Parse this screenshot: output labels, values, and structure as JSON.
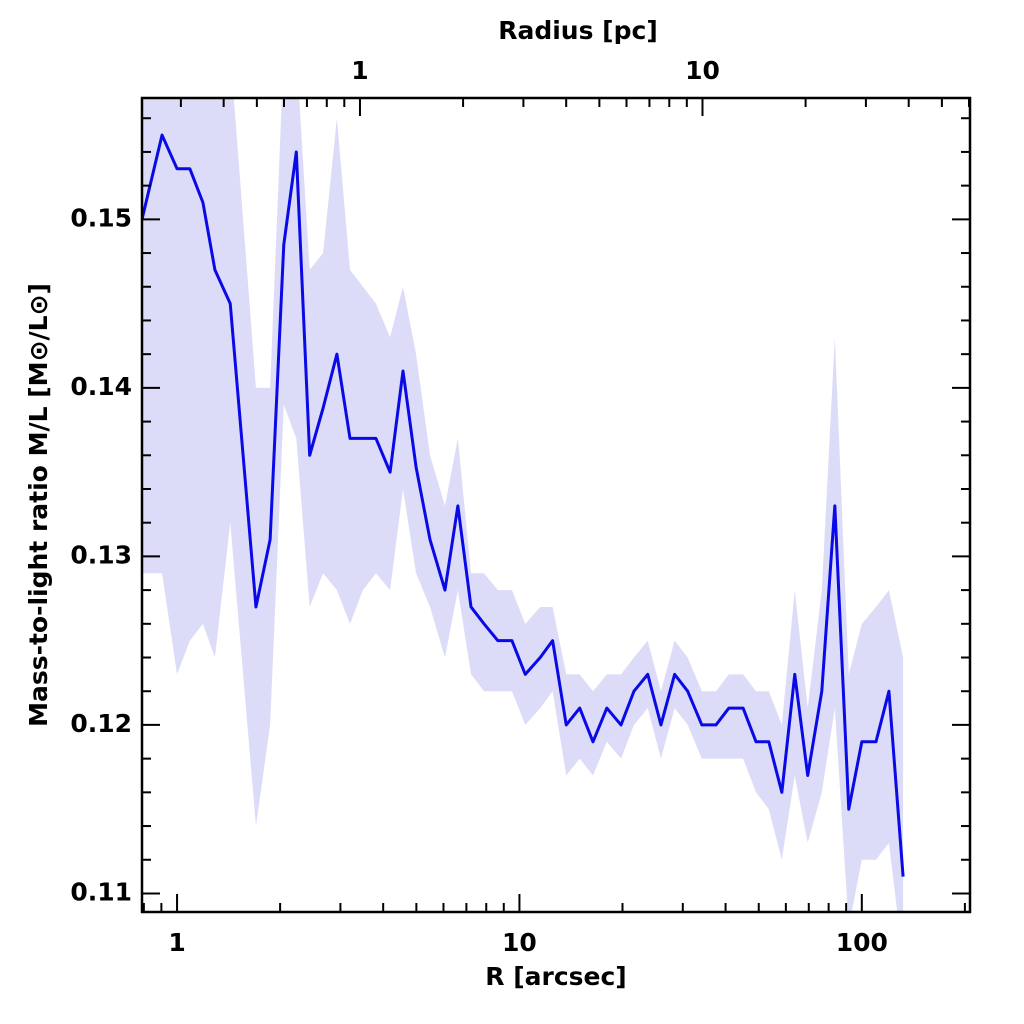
{
  "chart_data": {
    "type": "line",
    "xlabel": "R [arcsec]",
    "ylabel": "Mass-to-light ratio M/L [M⊙/L⊙]",
    "x2label": "Radius [pc]",
    "xlog": true,
    "x": [
      0.79,
      0.904,
      1.0,
      1.09,
      1.19,
      1.29,
      1.43,
      1.7,
      1.87,
      2.05,
      2.23,
      2.44,
      2.67,
      2.93,
      3.2,
      3.49,
      3.81,
      4.19,
      4.57,
      4.99,
      5.48,
      6.06,
      6.61,
      7.22,
      7.88,
      8.65,
      9.51,
      10.4,
      11.5,
      12.5,
      13.7,
      15.0,
      16.4,
      18.0,
      19.8,
      21.6,
      23.7,
      25.9,
      28.4,
      31.0,
      34.1,
      37.5,
      40.9,
      45.0,
      49.1,
      53.5,
      58.4,
      63.7,
      69.5,
      76.4,
      83.4,
      91.6,
      100,
      110,
      120,
      132
    ],
    "series": [
      {
        "color": "#0a0ae6",
        "values": [
          0.15,
          0.155,
          0.153,
          0.153,
          0.151,
          0.147,
          0.145,
          0.127,
          0.131,
          0.1485,
          0.154,
          0.136,
          0.1388,
          0.142,
          0.137,
          0.137,
          0.137,
          0.135,
          0.141,
          0.1353,
          0.131,
          0.128,
          0.133,
          0.127,
          0.126,
          0.125,
          0.125,
          0.123,
          0.124,
          0.125,
          0.12,
          0.121,
          0.119,
          0.121,
          0.12,
          0.122,
          0.123,
          0.12,
          0.123,
          0.122,
          0.12,
          0.12,
          0.121,
          0.121,
          0.119,
          0.119,
          0.116,
          0.123,
          0.117,
          0.122,
          0.133,
          0.115,
          0.119,
          0.119,
          0.122,
          0.111
        ]
      }
    ],
    "band": {
      "color": "#dcdcf8",
      "lower": [
        0.129,
        0.129,
        0.123,
        0.125,
        0.126,
        0.124,
        0.132,
        0.114,
        0.12,
        0.139,
        0.137,
        0.127,
        0.129,
        0.128,
        0.126,
        0.128,
        0.129,
        0.128,
        0.134,
        0.129,
        0.127,
        0.124,
        0.128,
        0.123,
        0.122,
        0.122,
        0.122,
        0.12,
        0.121,
        0.122,
        0.117,
        0.118,
        0.117,
        0.119,
        0.118,
        0.12,
        0.121,
        0.118,
        0.121,
        0.12,
        0.118,
        0.118,
        0.118,
        0.118,
        0.116,
        0.115,
        0.112,
        0.117,
        0.113,
        0.116,
        0.121,
        0.108,
        0.112,
        0.112,
        0.113,
        0.106
      ],
      "upper": [
        0.158,
        0.16,
        0.16,
        0.16,
        0.16,
        0.16,
        0.16,
        0.14,
        0.14,
        0.16,
        0.16,
        0.147,
        0.148,
        0.156,
        0.147,
        0.146,
        0.145,
        0.143,
        0.146,
        0.142,
        0.136,
        0.133,
        0.137,
        0.129,
        0.129,
        0.128,
        0.128,
        0.126,
        0.127,
        0.127,
        0.123,
        0.123,
        0.122,
        0.123,
        0.123,
        0.124,
        0.125,
        0.122,
        0.125,
        0.124,
        0.122,
        0.122,
        0.123,
        0.123,
        0.122,
        0.122,
        0.12,
        0.128,
        0.121,
        0.128,
        0.143,
        0.123,
        0.126,
        0.127,
        0.128,
        0.124
      ]
    },
    "xlim": [
      0.79,
      207
    ],
    "xticks": [
      1,
      10,
      100
    ],
    "xminorticks": [
      0.8,
      0.9,
      2,
      3,
      4,
      5,
      6,
      7,
      8,
      9,
      20,
      30,
      40,
      50,
      60,
      70,
      80,
      90,
      200
    ],
    "x2lim": [
      0.231,
      60.4
    ],
    "x2ticks": [
      1,
      10
    ],
    "x2minorticks": [
      0.3,
      0.4,
      0.5,
      0.6,
      0.7,
      0.8,
      0.9,
      2,
      3,
      4,
      5,
      6,
      7,
      8,
      9,
      20,
      30,
      40,
      50,
      60
    ],
    "ylim": [
      0.1089,
      0.1572
    ],
    "yticks": [
      0.11,
      0.12,
      0.13,
      0.14,
      0.15
    ],
    "yminorticks": [
      0.112,
      0.114,
      0.116,
      0.118,
      0.122,
      0.124,
      0.126,
      0.128,
      0.132,
      0.134,
      0.136,
      0.138,
      0.142,
      0.144,
      0.146,
      0.148,
      0.152,
      0.154,
      0.156
    ]
  }
}
